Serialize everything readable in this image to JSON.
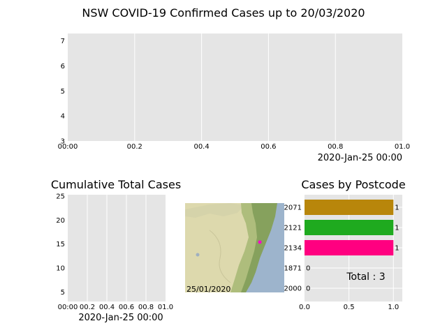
{
  "page_title": "NSW COVID-19 Confirmed Cases up to 20/03/2020",
  "colors": {
    "panel": "#e5e5e5",
    "grid": "#ffffff",
    "sea": "#9db4cc",
    "land": "#ddd9ad"
  },
  "chart_data": [
    {
      "id": "timeline",
      "type": "line",
      "title": "",
      "xticks": [
        "00:00",
        "00.2",
        "00.4",
        "00.6",
        "00.8",
        "01.0"
      ],
      "x": [
        0,
        0.2,
        0.4,
        0.6,
        0.8,
        1.0
      ],
      "xlim": [
        0,
        1.0
      ],
      "ylim": [
        3,
        7.3
      ],
      "yticks": [
        3,
        4,
        5,
        6,
        7
      ],
      "series": [],
      "grid": true,
      "time_label": "2020-Jan-25 00:00"
    },
    {
      "id": "cumulative",
      "type": "line",
      "title": "Cumulative Total Cases",
      "xticks": [
        "00:00",
        "00.2",
        "00.4",
        "00.6",
        "00.8",
        "01.0"
      ],
      "x": [
        0,
        0.2,
        0.4,
        0.6,
        0.8,
        1.0
      ],
      "xlim": [
        0,
        1.0
      ],
      "ylim": [
        3,
        25.3
      ],
      "yticks": [
        5,
        10,
        15,
        20,
        25
      ],
      "series": [],
      "grid": true,
      "time_label": "2020-Jan-25 00:00"
    },
    {
      "id": "map",
      "type": "scatter",
      "title": "",
      "date_label": "25/01/2020",
      "points": [
        {
          "lon": 151.1,
          "lat": -33.9,
          "color": "#ff00cc"
        }
      ]
    },
    {
      "id": "postcode",
      "type": "bar",
      "orientation": "horizontal",
      "title": "Cases by Postcode",
      "categories": [
        "2071",
        "2121",
        "2134",
        "1871",
        "2000"
      ],
      "values": [
        1,
        1,
        1,
        0,
        0
      ],
      "value_labels": [
        "1",
        "1",
        "1",
        "0",
        "0"
      ],
      "bar_colors": [
        "#b8860b",
        "#1faa1f",
        "#ff0080",
        "#1f77b4",
        "#1f77b4"
      ],
      "xlim": [
        0,
        1.1
      ],
      "xticks": [
        "0.0",
        "0.5",
        "1.0"
      ],
      "xtick_values": [
        0,
        0.5,
        1.0
      ],
      "total_label": "Total : 3",
      "grid": true
    }
  ]
}
